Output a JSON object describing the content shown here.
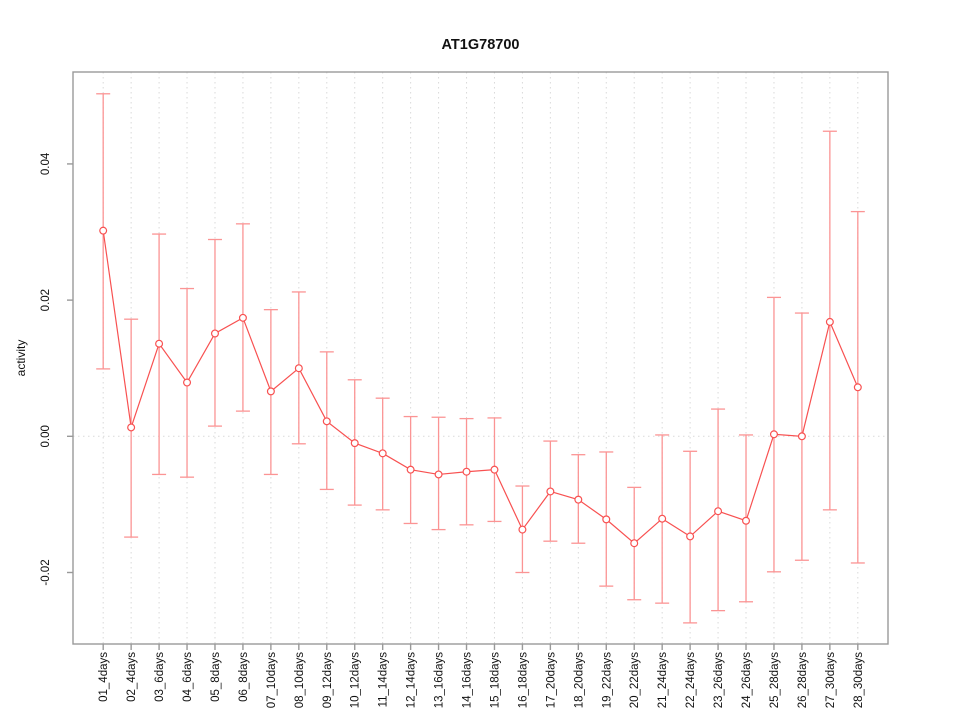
{
  "chart_data": {
    "type": "line",
    "title": "AT1G78700",
    "xlabel": "",
    "ylabel": "activity",
    "legend": "none",
    "point_marker": "open-circle",
    "error_bars": true,
    "grid": {
      "vertical": "dotted line at every x tick",
      "horizontal": "dotted line at y=0 only"
    },
    "categories": [
      "01_4days",
      "02_4days",
      "03_6days",
      "04_6days",
      "05_8days",
      "06_8days",
      "07_10days",
      "08_10days",
      "09_12days",
      "10_12days",
      "11_14days",
      "12_14days",
      "13_16days",
      "14_16days",
      "15_18days",
      "16_18days",
      "17_20days",
      "18_20days",
      "19_22days",
      "20_22days",
      "21_24days",
      "22_24days",
      "23_26days",
      "24_26days",
      "25_28days",
      "26_28days",
      "27_30days",
      "28_30days"
    ],
    "series": [
      {
        "name": "activity",
        "values": [
          0.0302,
          0.0013,
          0.0136,
          0.0079,
          0.0151,
          0.0174,
          0.0066,
          0.01,
          0.0022,
          -0.001,
          -0.0025,
          -0.0049,
          -0.0056,
          -0.0052,
          -0.0049,
          -0.0137,
          -0.0081,
          -0.0093,
          -0.0122,
          -0.0157,
          -0.0121,
          -0.0147,
          -0.011,
          -0.0124,
          0.0003,
          0.0,
          0.0168,
          0.0072
        ],
        "error_low": [
          0.0099,
          -0.0148,
          -0.0056,
          -0.006,
          0.0015,
          0.0037,
          -0.0056,
          -0.0011,
          -0.0078,
          -0.0101,
          -0.0108,
          -0.0128,
          -0.0137,
          -0.013,
          -0.0125,
          -0.02,
          -0.0154,
          -0.0157,
          -0.022,
          -0.024,
          -0.0245,
          -0.0274,
          -0.0256,
          -0.0243,
          -0.0199,
          -0.0182,
          -0.0108,
          -0.0186
        ],
        "error_high": [
          0.0503,
          0.0172,
          0.0297,
          0.0217,
          0.0289,
          0.0312,
          0.0186,
          0.0212,
          0.0124,
          0.0083,
          0.0056,
          0.0029,
          0.0028,
          0.0026,
          0.0027,
          -0.0073,
          -0.0007,
          -0.0027,
          -0.0023,
          -0.0075,
          0.0002,
          -0.0022,
          0.004,
          0.0002,
          0.0204,
          0.0181,
          0.0448,
          0.033
        ]
      }
    ],
    "yticks": [
      -0.02,
      0.0,
      0.02,
      0.04
    ],
    "ytick_labels": [
      "-0.02",
      "0.00",
      "0.02",
      "0.04"
    ],
    "ylim": [
      -0.0305,
      0.0535
    ],
    "colors": {
      "line": "#f85151",
      "point": "#f85151",
      "error_bar": "#fb9494",
      "grid": "#d9d9d9",
      "axis": "#999999",
      "text": "#111111",
      "background": "#ffffff"
    }
  }
}
